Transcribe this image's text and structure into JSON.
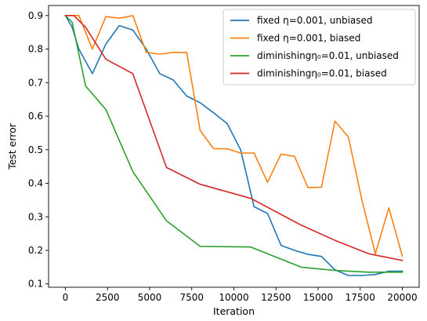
{
  "chart_data": {
    "type": "line",
    "title": "",
    "xlabel": "Iteration",
    "ylabel": "Test error",
    "xlim": [
      -1000,
      21000
    ],
    "ylim": [
      0.09,
      0.93
    ],
    "xticks": [
      0,
      2500,
      5000,
      7500,
      10000,
      12500,
      15000,
      17500,
      20000
    ],
    "yticks": [
      0.1,
      0.2,
      0.3,
      0.4,
      0.5,
      0.6,
      0.7,
      0.8,
      0.9
    ],
    "grid": false,
    "legend_position": "top-right",
    "series": [
      {
        "name": "fixed η=0.001, unbiased",
        "color": "#1f77b4",
        "x": [
          0,
          400,
          800,
          1600,
          2400,
          3200,
          4000,
          4800,
          5600,
          6400,
          7200,
          8000,
          8800,
          9600,
          10400,
          11200,
          12000,
          12800,
          13600,
          14400,
          15200,
          16000,
          16800,
          17600,
          18400,
          19200,
          20000
        ],
        "y": [
          0.9,
          0.865,
          0.8,
          0.727,
          0.815,
          0.87,
          0.857,
          0.8,
          0.727,
          0.708,
          0.66,
          0.64,
          0.61,
          0.578,
          0.5,
          0.33,
          0.31,
          0.215,
          0.2,
          0.188,
          0.182,
          0.142,
          0.125,
          0.125,
          0.128,
          0.138,
          0.138
        ]
      },
      {
        "name": "fixed η=0.001, biased",
        "color": "#ff7f0e",
        "x": [
          0,
          400,
          800,
          1600,
          2400,
          3200,
          4000,
          4800,
          5600,
          6400,
          7200,
          8000,
          8800,
          9600,
          10400,
          11200,
          12000,
          12800,
          13600,
          14400,
          15200,
          16000,
          16800,
          17600,
          18400,
          19200,
          20000
        ],
        "y": [
          0.9,
          0.9,
          0.9,
          0.8,
          0.897,
          0.892,
          0.9,
          0.79,
          0.785,
          0.79,
          0.79,
          0.557,
          0.503,
          0.503,
          0.49,
          0.49,
          0.403,
          0.487,
          0.48,
          0.387,
          0.388,
          0.585,
          0.538,
          0.35,
          0.19,
          0.327,
          0.183
        ]
      },
      {
        "name": "diminishingη₀=0.01, unbiased",
        "color": "#2ca02c",
        "x": [
          0,
          400,
          1200,
          2400,
          4000,
          6000,
          8000,
          11000,
          14000,
          16000,
          18000,
          20000
        ],
        "y": [
          0.9,
          0.88,
          0.69,
          0.62,
          0.435,
          0.288,
          0.212,
          0.21,
          0.15,
          0.14,
          0.135,
          0.135
        ]
      },
      {
        "name": "diminishingη₀=0.01, biased",
        "color": "#d62728",
        "x": [
          0,
          500,
          1200,
          2400,
          4000,
          6000,
          8000,
          11000,
          14000,
          16000,
          18000,
          20000
        ],
        "y": [
          0.9,
          0.9,
          0.865,
          0.77,
          0.727,
          0.447,
          0.397,
          0.355,
          0.275,
          0.23,
          0.19,
          0.17
        ]
      }
    ]
  }
}
